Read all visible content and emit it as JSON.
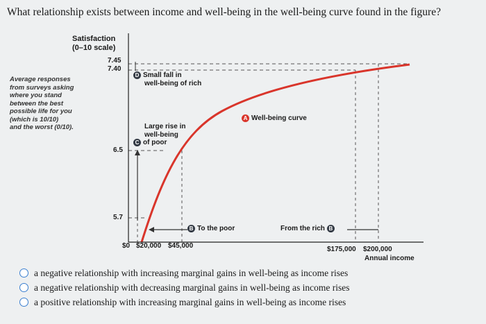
{
  "question": "What relationship exists between income and well-being in the well-being curve found in the figure?",
  "figure": {
    "y_title": [
      "Satisfaction",
      "(0–10 scale)"
    ],
    "y_ticks": [
      "7.45",
      "7.40",
      "6.5",
      "5.7"
    ],
    "x_ticks": [
      "$0",
      "$20,000",
      "$45,000",
      "$175,000",
      "$200,000"
    ],
    "x_title": "Annual income",
    "side_note": [
      "Average responses",
      "from surveys asking",
      "where you stand",
      "between the best",
      "possible life for you",
      "(which is 10/10)",
      "and the worst (0/10)."
    ],
    "label_a": "Well-being curve",
    "label_b_left": "To the poor",
    "label_b_right": "From the rich",
    "label_c": [
      "Large rise in",
      "well-being",
      "of poor"
    ],
    "label_d": [
      "Small fall in",
      "well-being of rich"
    ],
    "badges": {
      "a": "A",
      "b": "B",
      "c": "C",
      "d": "D"
    },
    "colors": {
      "curve": "#d9352b",
      "axis": "#222222",
      "dashed": "#555555"
    }
  },
  "options": [
    "a negative relationship with increasing marginal gains in well-being as income rises",
    "a negative relationship with decreasing marginal gains in well-being as income rises",
    "a positive relationship with increasing marginal gains in well-being as income rises"
  ]
}
